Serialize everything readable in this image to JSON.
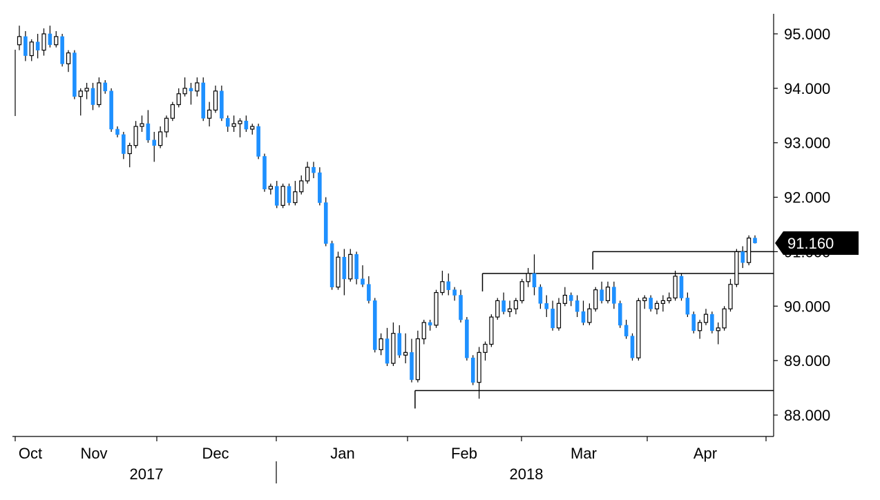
{
  "chart_data": {
    "type": "candlestick",
    "y_axis": {
      "position": "right",
      "ticks": [
        "95.000",
        "94.000",
        "93.000",
        "92.000",
        "91.000",
        "90.000",
        "89.000",
        "88.000"
      ],
      "tick_values": [
        95,
        94,
        93,
        92,
        91,
        90,
        89,
        88
      ],
      "ylim": [
        87.6,
        95.6
      ]
    },
    "x_axis": {
      "month_labels": [
        "Oct",
        "Nov",
        "Dec",
        "Jan",
        "Feb",
        "Mar",
        "Apr"
      ],
      "year_labels": [
        "2017",
        "2018"
      ]
    },
    "last_price": {
      "label": "91.160",
      "value": 91.16
    },
    "colors": {
      "up": "#ffffff",
      "down": "#1e90ff",
      "outline": "#000000",
      "label_bg": "#000000",
      "label_text": "#ffffff"
    },
    "grid": false,
    "candles": [
      [
        94.8,
        95.15,
        94.7,
        94.95
      ],
      [
        94.95,
        95.05,
        94.5,
        94.6
      ],
      [
        94.6,
        94.9,
        94.5,
        94.85
      ],
      [
        94.85,
        95.0,
        94.55,
        94.7
      ],
      [
        94.7,
        95.1,
        94.6,
        95.0
      ],
      [
        95.0,
        95.15,
        94.75,
        94.8
      ],
      [
        94.8,
        95.05,
        94.75,
        94.95
      ],
      [
        94.95,
        95.0,
        94.4,
        94.45
      ],
      [
        94.45,
        94.7,
        94.3,
        94.65
      ],
      [
        94.65,
        94.7,
        93.8,
        93.85
      ],
      [
        93.85,
        94.0,
        93.5,
        93.95
      ],
      [
        93.95,
        94.1,
        93.8,
        94.0
      ],
      [
        94.0,
        94.1,
        93.6,
        93.7
      ],
      [
        93.7,
        94.2,
        93.65,
        94.1
      ],
      [
        94.1,
        94.15,
        93.9,
        93.95
      ],
      [
        93.95,
        94.0,
        93.2,
        93.25
      ],
      [
        93.25,
        93.3,
        93.1,
        93.15
      ],
      [
        93.15,
        93.2,
        92.7,
        92.8
      ],
      [
        92.8,
        93.0,
        92.55,
        92.95
      ],
      [
        92.95,
        93.4,
        92.9,
        93.3
      ],
      [
        93.3,
        93.5,
        93.2,
        93.35
      ],
      [
        93.35,
        93.6,
        93.0,
        93.05
      ],
      [
        93.05,
        93.2,
        92.65,
        92.95
      ],
      [
        92.95,
        93.3,
        92.9,
        93.2
      ],
      [
        93.2,
        93.5,
        93.1,
        93.45
      ],
      [
        93.45,
        93.75,
        93.4,
        93.7
      ],
      [
        93.7,
        94.0,
        93.65,
        93.9
      ],
      [
        93.9,
        94.2,
        93.85,
        94.0
      ],
      [
        94.0,
        94.1,
        93.7,
        93.95
      ],
      [
        93.95,
        94.2,
        93.85,
        94.1
      ],
      [
        94.1,
        94.2,
        93.4,
        93.45
      ],
      [
        93.45,
        93.75,
        93.3,
        93.6
      ],
      [
        93.6,
        94.05,
        93.55,
        93.95
      ],
      [
        93.95,
        94.05,
        93.4,
        93.45
      ],
      [
        93.45,
        93.5,
        93.2,
        93.3
      ],
      [
        93.3,
        93.5,
        93.2,
        93.35
      ],
      [
        93.35,
        93.45,
        93.1,
        93.4
      ],
      [
        93.4,
        93.5,
        93.2,
        93.25
      ],
      [
        93.25,
        93.35,
        93.15,
        93.3
      ],
      [
        93.3,
        93.35,
        92.7,
        92.75
      ],
      [
        92.75,
        92.8,
        92.1,
        92.15
      ],
      [
        92.15,
        92.25,
        92.05,
        92.2
      ],
      [
        92.2,
        92.3,
        91.8,
        91.85
      ],
      [
        91.85,
        92.25,
        91.8,
        92.2
      ],
      [
        92.2,
        92.25,
        91.85,
        91.9
      ],
      [
        91.9,
        92.3,
        91.85,
        92.1
      ],
      [
        92.1,
        92.4,
        92.05,
        92.3
      ],
      [
        92.3,
        92.65,
        92.25,
        92.55
      ],
      [
        92.55,
        92.65,
        92.35,
        92.45
      ],
      [
        92.45,
        92.55,
        91.85,
        91.9
      ],
      [
        91.9,
        92.0,
        91.1,
        91.15
      ],
      [
        91.15,
        91.2,
        90.3,
        90.35
      ],
      [
        90.35,
        91.0,
        90.3,
        90.9
      ],
      [
        90.9,
        91.05,
        90.2,
        90.5
      ],
      [
        90.5,
        91.05,
        90.45,
        90.95
      ],
      [
        90.95,
        91.0,
        90.4,
        90.5
      ],
      [
        90.5,
        90.75,
        90.35,
        90.4
      ],
      [
        90.4,
        90.55,
        90.05,
        90.1
      ],
      [
        90.1,
        90.15,
        89.15,
        89.2
      ],
      [
        89.2,
        89.5,
        89.1,
        89.4
      ],
      [
        89.4,
        89.6,
        88.9,
        88.95
      ],
      [
        88.95,
        89.7,
        88.9,
        89.5
      ],
      [
        89.5,
        89.65,
        89.05,
        89.1
      ],
      [
        89.1,
        89.5,
        88.95,
        89.15
      ],
      [
        89.15,
        89.4,
        88.6,
        88.65
      ],
      [
        88.65,
        89.55,
        88.6,
        89.4
      ],
      [
        89.4,
        89.75,
        89.3,
        89.7
      ],
      [
        89.7,
        89.75,
        89.55,
        89.65
      ],
      [
        89.65,
        90.3,
        89.6,
        90.25
      ],
      [
        90.25,
        90.65,
        90.2,
        90.45
      ],
      [
        90.45,
        90.6,
        90.2,
        90.3
      ],
      [
        90.3,
        90.35,
        90.1,
        90.2
      ],
      [
        90.2,
        90.3,
        89.7,
        89.75
      ],
      [
        89.75,
        89.8,
        89.0,
        89.05
      ],
      [
        89.05,
        89.1,
        88.55,
        88.6
      ],
      [
        88.6,
        89.25,
        88.3,
        89.15
      ],
      [
        89.15,
        89.35,
        89.0,
        89.3
      ],
      [
        89.3,
        89.85,
        89.25,
        89.8
      ],
      [
        89.8,
        90.15,
        89.75,
        90.1
      ],
      [
        90.1,
        90.25,
        89.85,
        89.9
      ],
      [
        89.9,
        90.1,
        89.8,
        89.95
      ],
      [
        89.95,
        90.15,
        89.85,
        90.1
      ],
      [
        90.1,
        90.5,
        90.05,
        90.45
      ],
      [
        90.45,
        90.7,
        90.35,
        90.6
      ],
      [
        90.6,
        90.95,
        90.2,
        90.35
      ],
      [
        90.35,
        90.4,
        89.95,
        90.05
      ],
      [
        90.05,
        90.2,
        89.8,
        89.95
      ],
      [
        89.95,
        90.1,
        89.55,
        89.6
      ],
      [
        89.6,
        90.15,
        89.55,
        90.05
      ],
      [
        90.05,
        90.35,
        90.0,
        90.2
      ],
      [
        90.2,
        90.25,
        90.0,
        90.1
      ],
      [
        90.1,
        90.2,
        89.8,
        89.9
      ],
      [
        89.9,
        90.1,
        89.65,
        89.7
      ],
      [
        89.7,
        90.05,
        89.65,
        89.95
      ],
      [
        89.95,
        90.35,
        89.9,
        90.3
      ],
      [
        90.3,
        90.45,
        90.05,
        90.1
      ],
      [
        90.1,
        90.45,
        90.05,
        90.35
      ],
      [
        90.35,
        90.45,
        89.95,
        90.05
      ],
      [
        90.05,
        90.1,
        89.6,
        89.65
      ],
      [
        89.65,
        89.75,
        89.4,
        89.45
      ],
      [
        89.45,
        89.5,
        89.0,
        89.05
      ],
      [
        89.05,
        90.15,
        89.0,
        90.1
      ],
      [
        90.1,
        90.2,
        89.95,
        90.15
      ],
      [
        90.15,
        90.2,
        89.9,
        89.95
      ],
      [
        89.95,
        90.1,
        89.85,
        90.05
      ],
      [
        90.05,
        90.2,
        89.9,
        90.1
      ],
      [
        90.1,
        90.25,
        90.05,
        90.15
      ],
      [
        90.15,
        90.65,
        90.1,
        90.55
      ],
      [
        90.55,
        90.6,
        90.1,
        90.15
      ],
      [
        90.15,
        90.25,
        89.8,
        89.85
      ],
      [
        89.85,
        89.9,
        89.5,
        89.55
      ],
      [
        89.55,
        89.75,
        89.4,
        89.7
      ],
      [
        89.7,
        89.95,
        89.65,
        89.85
      ],
      [
        89.85,
        89.9,
        89.5,
        89.55
      ],
      [
        89.55,
        89.7,
        89.3,
        89.6
      ],
      [
        89.6,
        90.0,
        89.55,
        89.95
      ],
      [
        89.95,
        90.5,
        89.9,
        90.4
      ],
      [
        90.4,
        91.05,
        90.35,
        91.0
      ],
      [
        91.0,
        91.1,
        90.7,
        90.8
      ],
      [
        90.8,
        91.3,
        90.75,
        91.25
      ],
      [
        91.25,
        91.3,
        91.15,
        91.16
      ]
    ],
    "levels": [
      {
        "value": 91.0,
        "from_index": 94
      },
      {
        "value": 90.6,
        "from_index": 76
      },
      {
        "value": 88.45,
        "from_index": 65
      }
    ]
  }
}
